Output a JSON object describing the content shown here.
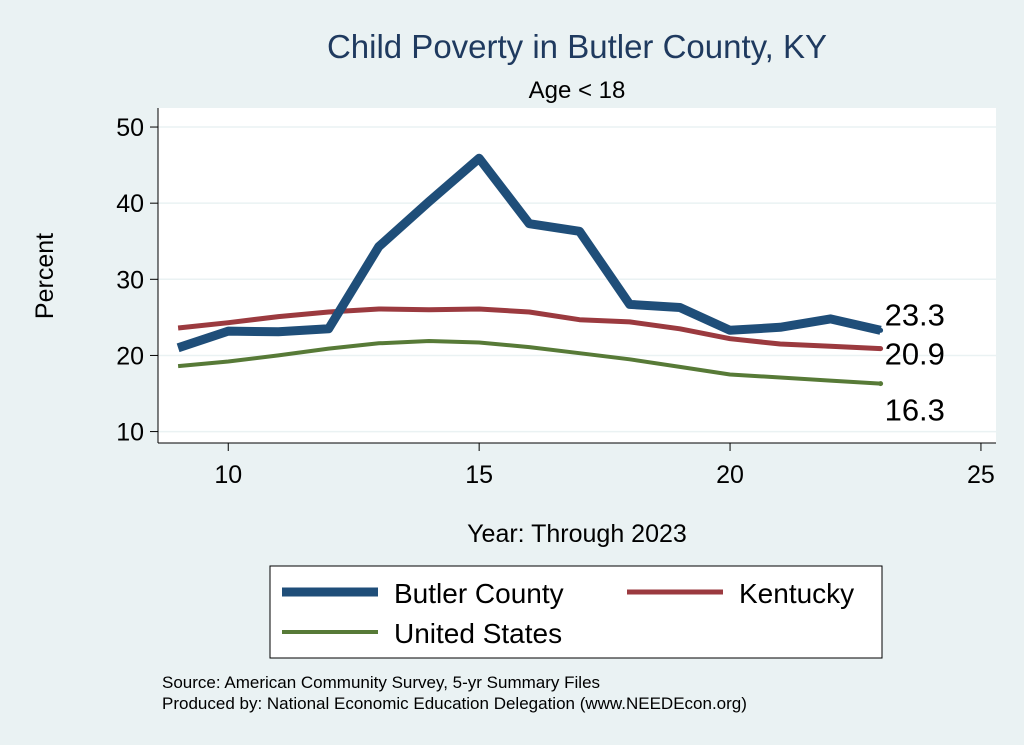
{
  "chart_data": {
    "type": "line",
    "title": "Child Poverty in Butler County, KY",
    "subtitle": "Age < 18",
    "xlabel": "Year: Through 2023",
    "ylabel": "Percent",
    "xlim": [
      8.6,
      25.3
    ],
    "ylim": [
      8.5,
      52.5
    ],
    "xticks": [
      10,
      15,
      20,
      25
    ],
    "yticks": [
      10,
      20,
      30,
      40,
      50
    ],
    "x": [
      9,
      10,
      11,
      12,
      13,
      14,
      15,
      16,
      17,
      18,
      19,
      20,
      21,
      22,
      23
    ],
    "series": [
      {
        "name": "Butler County",
        "color": "#1f4e79",
        "values": [
          21.0,
          23.2,
          23.1,
          23.5,
          34.3,
          40.2,
          45.9,
          37.3,
          36.3,
          26.7,
          26.3,
          23.3,
          23.7,
          24.8,
          23.3
        ],
        "end_label": "23.3"
      },
      {
        "name": "Kentucky",
        "color": "#9b3a3f",
        "values": [
          23.6,
          24.3,
          25.1,
          25.7,
          26.1,
          26.0,
          26.1,
          25.7,
          24.7,
          24.4,
          23.5,
          22.2,
          21.5,
          21.2,
          20.9
        ],
        "end_label": "20.9"
      },
      {
        "name": "United States",
        "color": "#577a37",
        "values": [
          18.6,
          19.2,
          20.0,
          20.9,
          21.6,
          21.9,
          21.7,
          21.1,
          20.3,
          19.5,
          18.5,
          17.5,
          17.1,
          16.7,
          16.3
        ],
        "end_label": "16.3"
      }
    ],
    "legend": [
      "Butler County",
      "Kentucky",
      "United States"
    ],
    "legend_position": "bottom",
    "grid": true
  },
  "notes": {
    "source": "Source: American Community Survey, 5-yr Summary Files",
    "produced_by": "Produced by: National Economic Education Delegation (www.NEEDEcon.org)"
  }
}
